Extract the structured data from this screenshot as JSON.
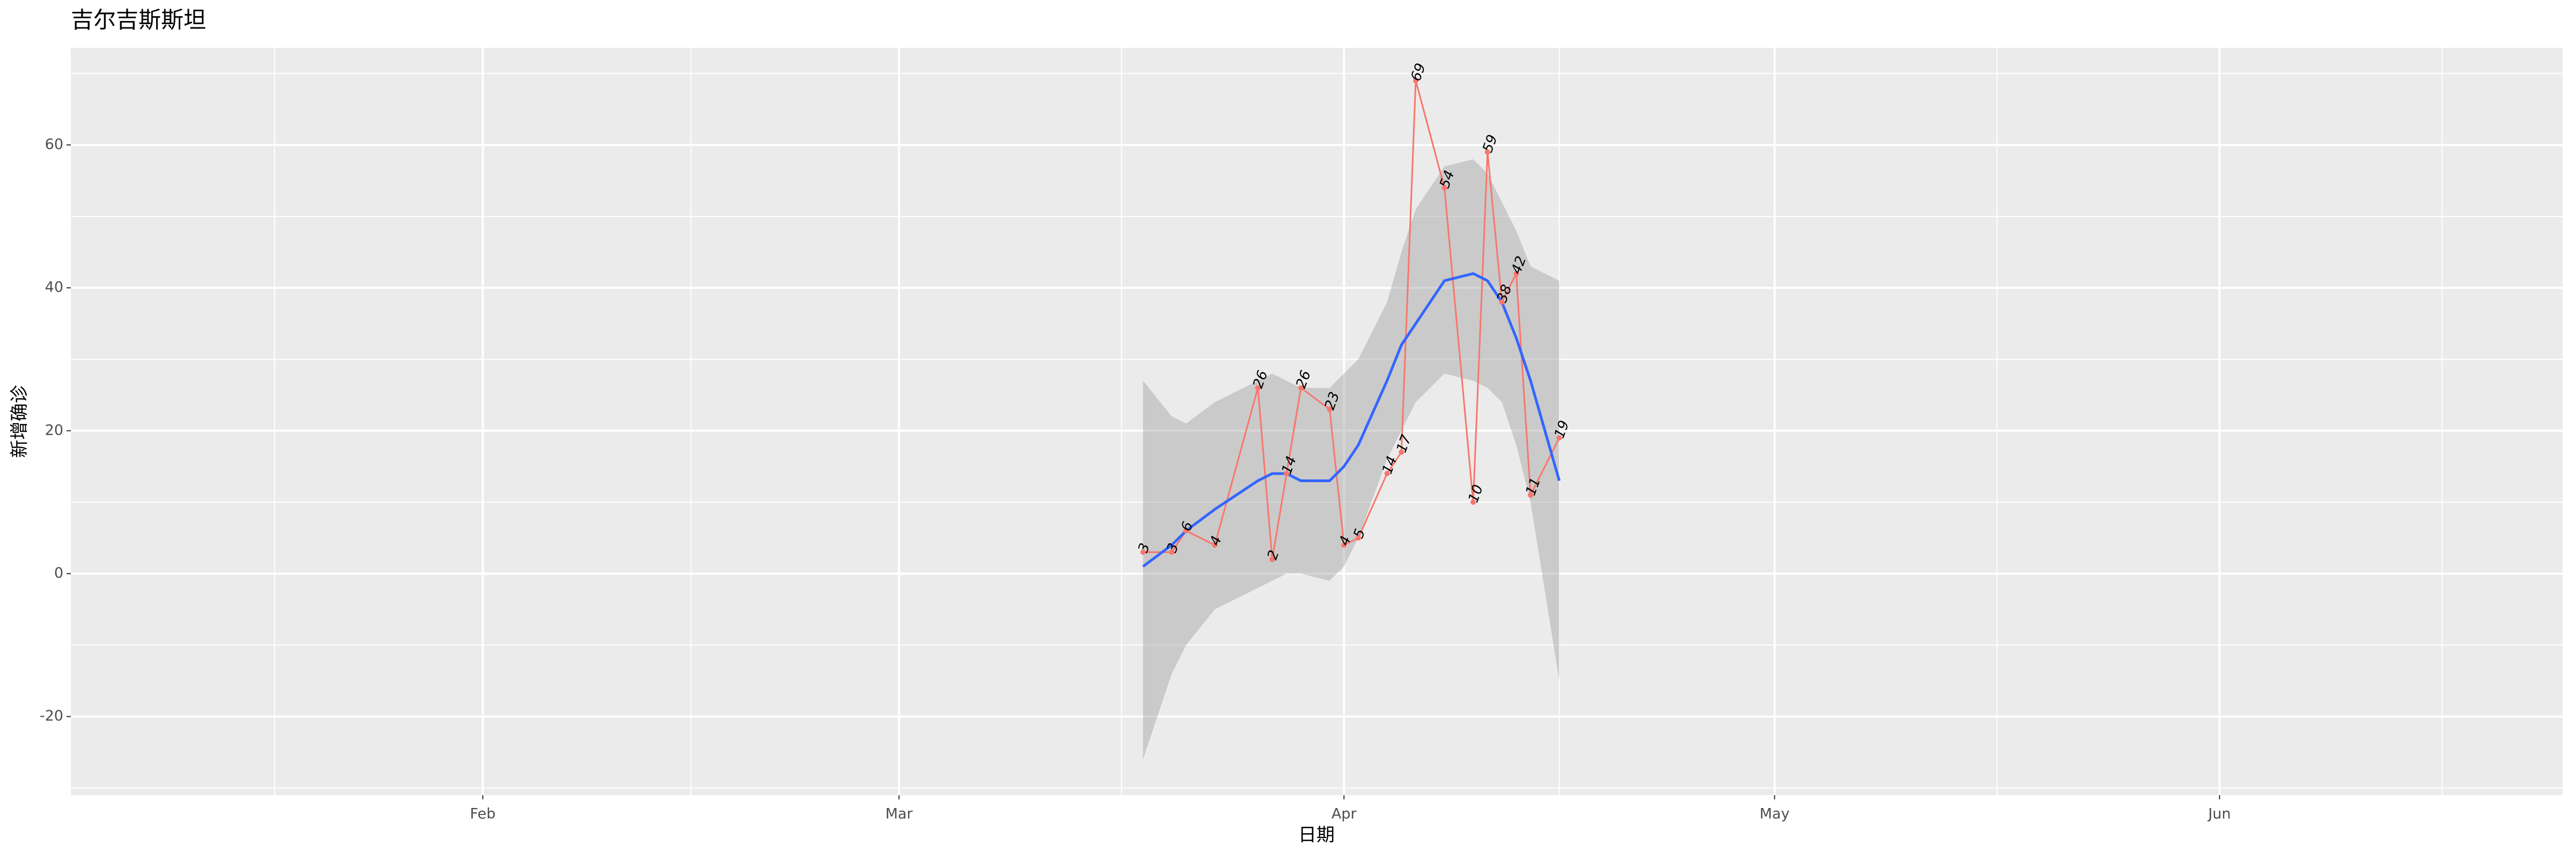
{
  "chart_data": {
    "type": "line",
    "title": "吉尔吉斯斯坦",
    "x_label": "日期",
    "y_label": "新增确诊",
    "x": [
      78,
      80,
      81,
      83,
      86,
      87,
      88,
      89,
      91,
      92,
      93,
      95,
      96,
      97,
      99,
      101,
      102,
      103,
      104,
      105,
      107
    ],
    "series": [
      {
        "color": "#F8766D",
        "values": [
          3,
          3,
          6,
          4,
          26,
          2,
          14,
          26,
          23,
          4,
          5,
          14,
          17,
          69,
          54,
          10,
          59,
          38,
          42,
          11,
          19
        ]
      },
      {
        "color": "#3366FF",
        "band_color": "#999999",
        "values": [
          1,
          4,
          6,
          9,
          13,
          14,
          14,
          13,
          13,
          15,
          18,
          27,
          32,
          35,
          41,
          42,
          41,
          38,
          33,
          27,
          13
        ],
        "upper": [
          27,
          22,
          21,
          24,
          27,
          28,
          27,
          26,
          26,
          28,
          30,
          38,
          45,
          51,
          57,
          58,
          56,
          52,
          48,
          43,
          41
        ],
        "lower": [
          -26,
          -14,
          -10,
          -5,
          -2,
          -1,
          0,
          0,
          -1,
          1,
          5,
          16,
          20,
          24,
          28,
          27,
          26,
          24,
          18,
          10,
          -15
        ]
      }
    ],
    "xlim": [
      3.3,
      176.9
    ],
    "xticks": [
      {
        "value": 32,
        "label": "Feb"
      },
      {
        "value": 61,
        "label": "Mar"
      },
      {
        "value": 92,
        "label": "Apr"
      },
      {
        "value": 122,
        "label": "May"
      },
      {
        "value": 153,
        "label": "Jun"
      }
    ],
    "ylim": [
      -31,
      73.6
    ],
    "yticks": [
      -20,
      0,
      20,
      40,
      60
    ],
    "grid": true
  }
}
